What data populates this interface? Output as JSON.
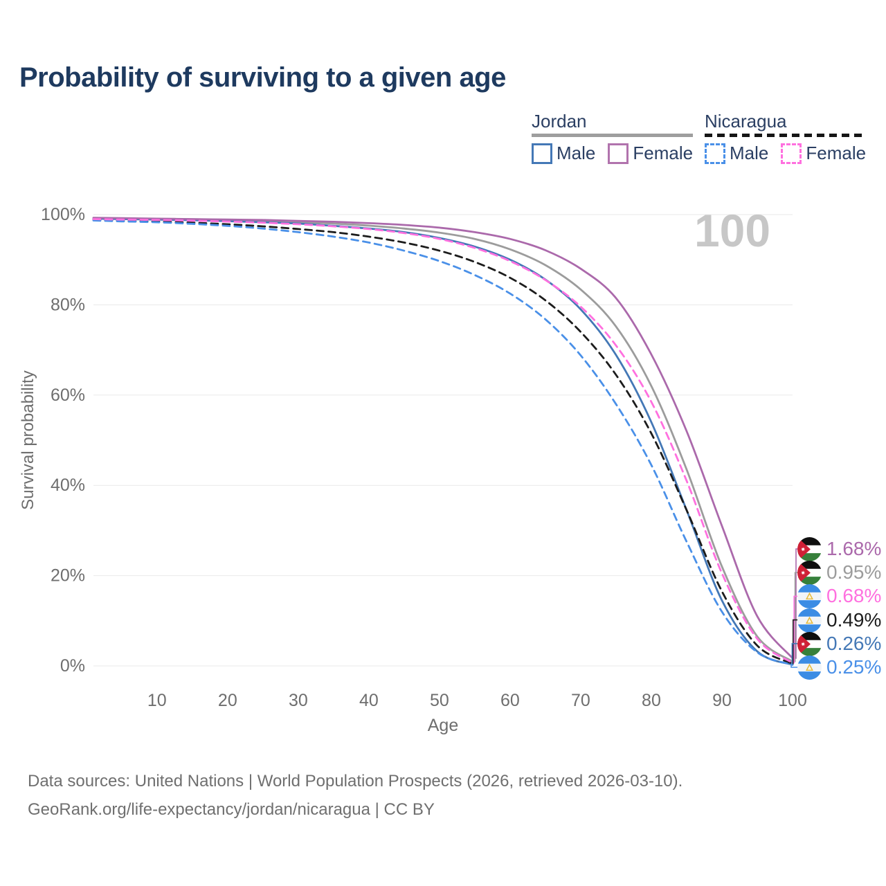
{
  "title": "Probability of surviving to a given age",
  "watermark": "100",
  "legend": {
    "groups": [
      {
        "country": "Jordan",
        "line_style": "solid",
        "line_color": "#9e9e9e",
        "items": [
          {
            "label": "Male",
            "color": "#4478b6",
            "style": "solid"
          },
          {
            "label": "Female",
            "color": "#b173ad",
            "style": "solid"
          }
        ]
      },
      {
        "country": "Nicaragua",
        "line_style": "dashed",
        "line_color": "#161616",
        "items": [
          {
            "label": "Male",
            "color": "#4a90e8",
            "style": "dashed"
          },
          {
            "label": "Female",
            "color": "#ff70df",
            "style": "dashed"
          }
        ]
      }
    ]
  },
  "chart_data": {
    "type": "line",
    "title": "Probability of surviving to a given age",
    "xlabel": "Age",
    "ylabel": "Survival probability",
    "xlim": [
      1,
      100
    ],
    "ylim": [
      0,
      100
    ],
    "grid": "horizontal",
    "x_ticks": [
      10,
      20,
      30,
      40,
      50,
      60,
      70,
      80,
      90,
      100
    ],
    "y_ticks": [
      {
        "label": "0%",
        "value": 0
      },
      {
        "label": "20%",
        "value": 20
      },
      {
        "label": "40%",
        "value": 40
      },
      {
        "label": "60%",
        "value": 60
      },
      {
        "label": "80%",
        "value": 80
      },
      {
        "label": "100%",
        "value": 100
      }
    ],
    "ages": [
      1,
      5,
      10,
      15,
      20,
      25,
      30,
      35,
      40,
      45,
      50,
      55,
      60,
      65,
      70,
      75,
      80,
      85,
      90,
      95,
      100
    ],
    "series": [
      {
        "name": "Jordan (both sexes)",
        "country": "Jordan",
        "sex": "Both",
        "color": "#9c9c9c",
        "dash": "solid",
        "values": [
          99.2,
          99.1,
          99.0,
          98.9,
          98.75,
          98.55,
          98.3,
          98.0,
          97.55,
          96.9,
          96.0,
          94.6,
          92.3,
          88.8,
          83.4,
          75.2,
          62.0,
          43.5,
          22.0,
          6.5,
          0.95
        ]
      },
      {
        "name": "Jordan Male",
        "country": "Jordan",
        "sex": "Male",
        "color": "#4478b6",
        "dash": "solid",
        "values": [
          99.1,
          99.0,
          98.9,
          98.75,
          98.55,
          98.3,
          98.0,
          97.5,
          96.9,
          96.1,
          94.8,
          92.9,
          90.0,
          85.6,
          79.0,
          68.9,
          54.0,
          34.5,
          14.5,
          3.2,
          0.26
        ]
      },
      {
        "name": "Jordan Female",
        "country": "Jordan",
        "sex": "Female",
        "color": "#ab69ab",
        "dash": "solid",
        "values": [
          99.3,
          99.2,
          99.1,
          99.0,
          98.9,
          98.8,
          98.6,
          98.4,
          98.1,
          97.7,
          97.1,
          96.1,
          94.6,
          92.1,
          88.0,
          81.5,
          69.0,
          52.0,
          31.0,
          11.0,
          1.68
        ]
      },
      {
        "name": "Nicaragua (both sexes)",
        "country": "Nicaragua",
        "sex": "Both",
        "color": "#1c1c1c",
        "dash": "dashed",
        "values": [
          98.9,
          98.6,
          98.45,
          98.2,
          97.85,
          97.4,
          96.8,
          96.1,
          95.1,
          93.8,
          92.0,
          89.5,
          86.0,
          81.0,
          74.0,
          64.5,
          51.5,
          34.5,
          16.5,
          4.5,
          0.49
        ]
      },
      {
        "name": "Nicaragua Male",
        "country": "Nicaragua",
        "sex": "Male",
        "color": "#4a90e8",
        "dash": "dashed",
        "values": [
          98.7,
          98.5,
          98.3,
          97.95,
          97.5,
          96.9,
          96.1,
          95.1,
          93.8,
          92.0,
          89.7,
          86.6,
          82.5,
          76.8,
          68.8,
          58.0,
          44.5,
          27.5,
          12.0,
          3.0,
          0.25
        ]
      },
      {
        "name": "Nicaragua Female",
        "country": "Nicaragua",
        "sex": "Female",
        "color": "#ff70df",
        "dash": "dashed",
        "values": [
          99.0,
          98.9,
          98.8,
          98.65,
          98.45,
          98.2,
          97.85,
          97.4,
          96.8,
          95.9,
          94.6,
          92.6,
          89.7,
          85.5,
          79.6,
          71.0,
          58.5,
          41.0,
          20.5,
          6.0,
          0.68
        ]
      }
    ],
    "end_labels": [
      {
        "flag": "jordan",
        "series": "Jordan Female",
        "value": "1.68%"
      },
      {
        "flag": "jordan",
        "series": "Jordan (both sexes)",
        "value": "0.95%"
      },
      {
        "flag": "nicaragua",
        "series": "Nicaragua Female",
        "value": "0.68%"
      },
      {
        "flag": "nicaragua",
        "series": "Nicaragua (both sexes)",
        "value": "0.49%"
      },
      {
        "flag": "jordan",
        "series": "Jordan Male",
        "value": "0.26%"
      },
      {
        "flag": "nicaragua",
        "series": "Nicaragua Male",
        "value": "0.25%"
      }
    ]
  },
  "footer": {
    "line1": "Data sources: United Nations | World Population Prospects (2026, retrieved 2026-03-10).",
    "line2": "GeoRank.org/life-expectancy/jordan/nicaragua | CC BY"
  }
}
